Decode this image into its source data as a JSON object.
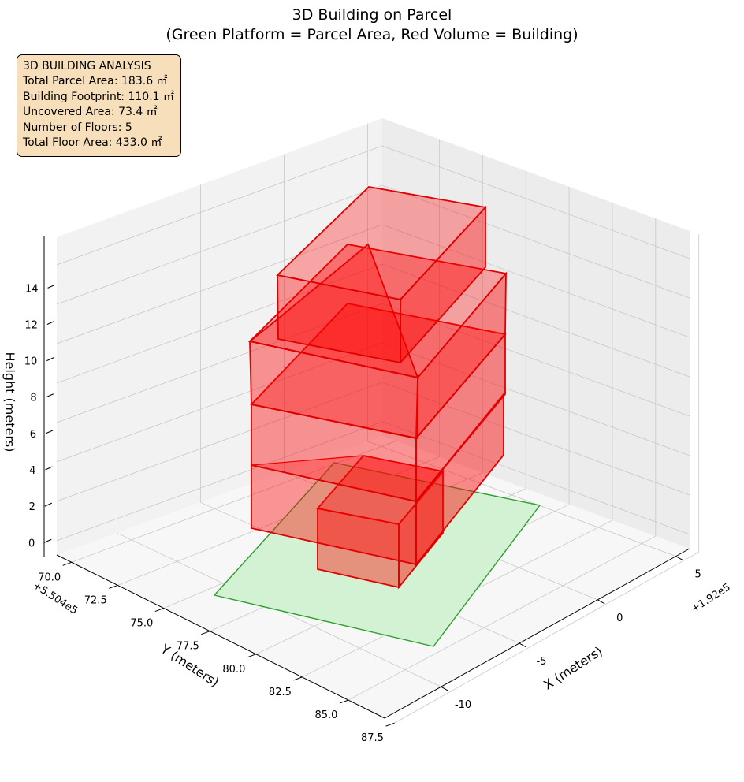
{
  "chart_data": {
    "type": "3d-polygons",
    "title": "3D Building on Parcel",
    "subtitle": "(Green Platform = Parcel Area, Red Volume = Building)",
    "xlabel": "X (meters)",
    "ylabel": "Y (meters)",
    "zlabel": "Height (meters)",
    "x_offset_label": "+1.92e5",
    "y_offset_label": "+5.504e5",
    "x_ticks": [
      "-10",
      "-5",
      "0",
      "5"
    ],
    "y_ticks": [
      "70.0",
      "72.5",
      "75.0",
      "77.5",
      "80.0",
      "82.5",
      "85.0",
      "87.5"
    ],
    "z_ticks": [
      "0",
      "2",
      "4",
      "6",
      "8",
      "10",
      "12",
      "14"
    ],
    "colors": {
      "parcel_face": "#d3f2d3",
      "parcel_edge": "#2ca02c",
      "building_edge": "#e00000",
      "building_face": "#ff0000",
      "info_box_bg": "#f6dfba"
    },
    "parcel": {
      "z": 0
    },
    "floors": [
      {
        "floor": 1,
        "z_bottom": 0,
        "z_top": 3
      },
      {
        "floor": 2,
        "z_bottom": 3,
        "z_top": 6
      },
      {
        "floor": 3,
        "z_bottom": 6,
        "z_top": 9
      },
      {
        "floor": 4,
        "z_bottom": 9,
        "z_top": 12
      },
      {
        "floor": 5,
        "z_bottom": 12,
        "z_top": 15
      }
    ]
  },
  "info_box": {
    "lines": [
      "3D BUILDING ANALYSIS",
      "Total Parcel Area: 183.6 ㎡",
      "Building Footprint: 110.1 ㎡",
      "Uncovered Area: 73.4 ㎡",
      "Number of Floors: 5",
      "Total Floor Area: 433.0 ㎡"
    ]
  }
}
